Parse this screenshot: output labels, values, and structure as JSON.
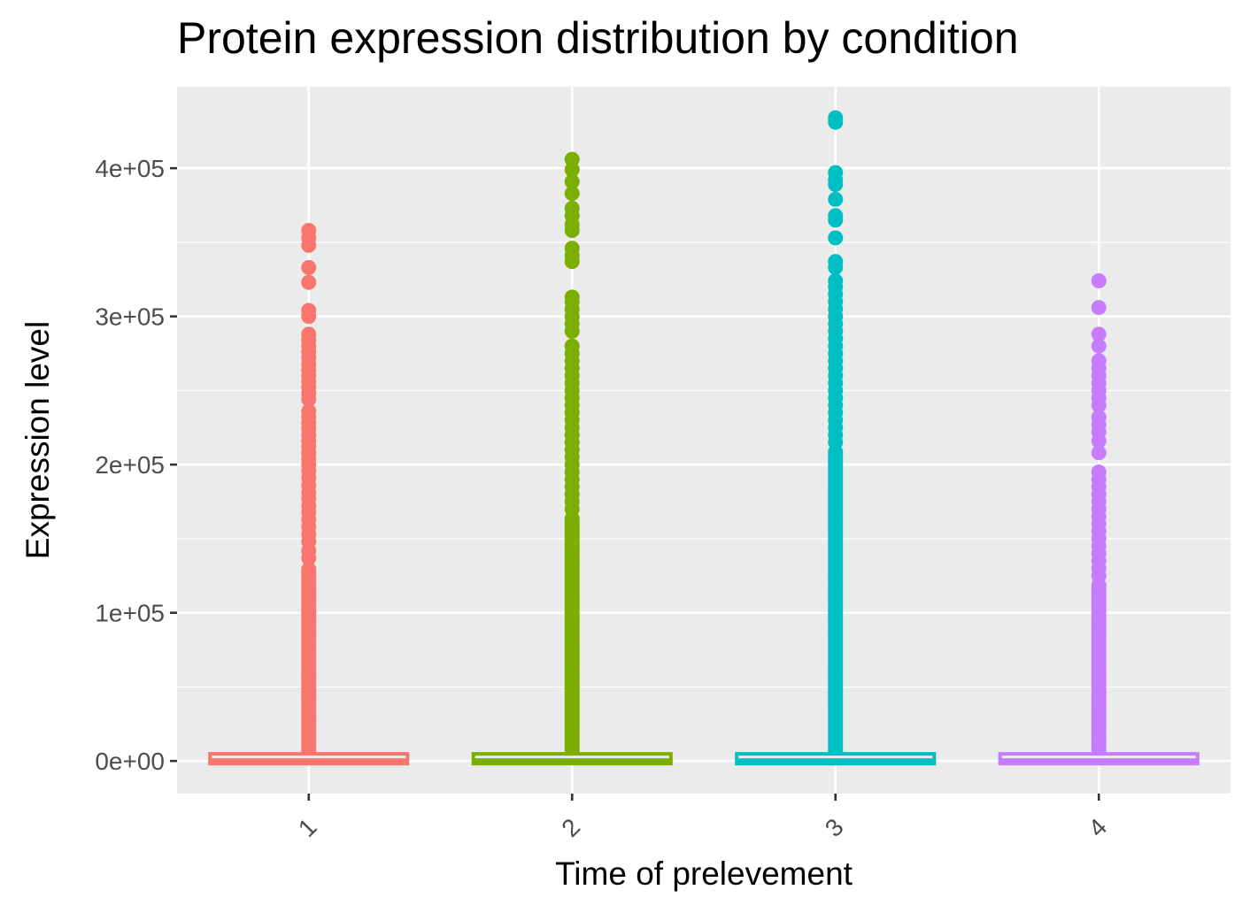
{
  "colors": {
    "panel_background": "#EBEBEB",
    "grid_line": "#FFFFFF",
    "tick_label": "#4D4D4D",
    "tick_mark": "#333333"
  },
  "chart_data": {
    "type": "boxplot",
    "title": "Protein expression distribution by condition",
    "xlabel": "Time of prelevement",
    "ylabel": "Expression level",
    "categories": [
      "1",
      "2",
      "3",
      "4"
    ],
    "x_tick_rotation_deg": -45,
    "ylim": [
      -22000,
      455000
    ],
    "y_ticks": [
      {
        "value": 0,
        "label": "0e+00"
      },
      {
        "value": 100000,
        "label": "1e+05"
      },
      {
        "value": 200000,
        "label": "2e+05"
      },
      {
        "value": 300000,
        "label": "3e+05"
      },
      {
        "value": 400000,
        "label": "4e+05"
      }
    ],
    "y_minor_ticks": [
      50000,
      150000,
      250000,
      350000
    ],
    "grid": true,
    "legend": "none",
    "series": [
      {
        "category": "1",
        "color": "#F8766D",
        "box": {
          "min": 0,
          "q1": 0,
          "median": 0,
          "q3": 3000,
          "max": 7000
        },
        "outliers": {
          "continuous_range": [
            7000,
            130000
          ],
          "points": [
            137000,
            142000,
            148000,
            153000,
            158000,
            163000,
            168000,
            172000,
            177000,
            181000,
            186000,
            191000,
            196000,
            200000,
            204000,
            208000,
            212000,
            216000,
            220000,
            224000,
            228000,
            232000,
            236000,
            244000,
            248000,
            252000,
            256000,
            260000,
            264000,
            268000,
            272000,
            276000,
            280000,
            284000,
            288000,
            300000,
            304000,
            323000,
            333000,
            348000,
            353000,
            358000
          ]
        }
      },
      {
        "category": "2",
        "color": "#7CAE00",
        "box": {
          "min": 0,
          "q1": 0,
          "median": 0,
          "q3": 3000,
          "max": 7000
        },
        "outliers": {
          "continuous_range": [
            7000,
            165000
          ],
          "points": [
            170000,
            175000,
            180000,
            185000,
            190000,
            195000,
            200000,
            205000,
            210000,
            215000,
            220000,
            225000,
            230000,
            235000,
            240000,
            245000,
            250000,
            255000,
            260000,
            265000,
            270000,
            275000,
            280000,
            290000,
            295000,
            300000,
            305000,
            310000,
            313000,
            337000,
            341000,
            346000,
            358000,
            362000,
            368000,
            373000,
            383000,
            391000,
            399000,
            406000
          ]
        }
      },
      {
        "category": "3",
        "color": "#00BFC4",
        "box": {
          "min": 0,
          "q1": 0,
          "median": 0,
          "q3": 3000,
          "max": 7000
        },
        "outliers": {
          "continuous_range": [
            7000,
            210000
          ],
          "points": [
            215000,
            220000,
            225000,
            230000,
            235000,
            240000,
            245000,
            250000,
            255000,
            260000,
            265000,
            270000,
            275000,
            280000,
            285000,
            290000,
            295000,
            300000,
            305000,
            310000,
            315000,
            320000,
            324000,
            333000,
            337000,
            353000,
            365000,
            368000,
            379000,
            389000,
            392000,
            397000,
            431000,
            434000
          ]
        }
      },
      {
        "category": "4",
        "color": "#C77CFF",
        "box": {
          "min": 0,
          "q1": 0,
          "median": 0,
          "q3": 3000,
          "max": 7000
        },
        "outliers": {
          "continuous_range": [
            7000,
            120000
          ],
          "points": [
            125000,
            130000,
            135000,
            140000,
            145000,
            150000,
            155000,
            160000,
            165000,
            170000,
            175000,
            180000,
            185000,
            190000,
            195000,
            208000,
            216000,
            222000,
            227000,
            232000,
            240000,
            245000,
            250000,
            255000,
            260000,
            265000,
            270000,
            280000,
            288000,
            306000,
            324000
          ]
        }
      }
    ]
  }
}
